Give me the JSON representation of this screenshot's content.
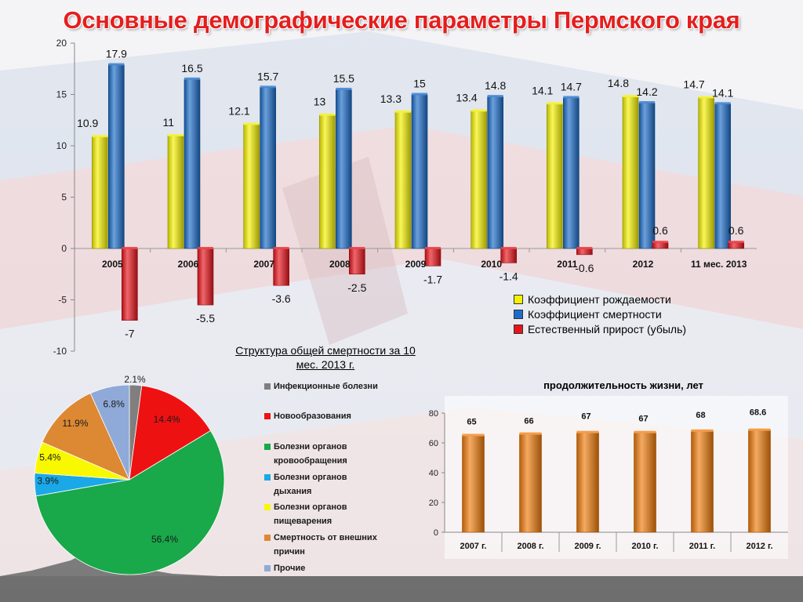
{
  "title": "Основные демографические параметры Пермского края",
  "chart_data": [
    {
      "type": "bar",
      "categories": [
        "2005",
        "2006",
        "2007",
        "2008",
        "2009",
        "2010",
        "2011",
        "2012",
        "11 мес. 2013"
      ],
      "ylim": [
        -10,
        20
      ],
      "yticks": [
        -10,
        -5,
        0,
        5,
        10,
        15,
        20
      ],
      "grid": false,
      "legend_position": "bottom-right",
      "series": [
        {
          "name": "Коэффициент рождаемости",
          "color": "#f5f200",
          "values": [
            10.9,
            11,
            12.1,
            13,
            13.3,
            13.4,
            14.1,
            14.8,
            14.7
          ]
        },
        {
          "name": "Коэффициент смертности",
          "color": "#1c6dc9",
          "values": [
            17.9,
            16.5,
            15.7,
            15.5,
            15,
            14.8,
            14.7,
            14.2,
            14.1
          ]
        },
        {
          "name": "Естественный прирост (убыль)",
          "color": "#e8141c",
          "values": [
            -7,
            -5.5,
            -3.6,
            -2.5,
            -1.7,
            -1.4,
            -0.6,
            0.6,
            0.6
          ]
        }
      ]
    },
    {
      "type": "pie",
      "title": "Структура общей смертности за 10 мес. 2013 г.",
      "labels": [
        "Инфекционные болезни",
        "Новообразования",
        "Болезни органов кровообращения",
        "Болезни органов дыхания",
        "Болезни органов пищеварения",
        "Смертность от внешних причин",
        "Прочие"
      ],
      "values": [
        2.1,
        14.4,
        56.4,
        3.9,
        5.4,
        11.9,
        6.8
      ],
      "value_labels": [
        "2.1%",
        "14.4%",
        "56.4%",
        "3.9%",
        "5.4%",
        "11.9%",
        "6.8%"
      ],
      "colors": [
        "#7f7f7f",
        "#ee1111",
        "#19a84a",
        "#1aa8e6",
        "#f8f800",
        "#dd8833",
        "#8faad8"
      ],
      "legend_position": "right"
    },
    {
      "type": "bar",
      "title": "продолжительность жизни, лет",
      "categories": [
        "2007 г.",
        "2008 г.",
        "2009 г.",
        "2010 г.",
        "2011 г.",
        "2012 г."
      ],
      "values": [
        65,
        66,
        67,
        67,
        68,
        68.6
      ],
      "ylim": [
        0,
        80
      ],
      "yticks": [
        0,
        20,
        40,
        60,
        80
      ],
      "color": "#f07c0c",
      "grid": false
    }
  ]
}
